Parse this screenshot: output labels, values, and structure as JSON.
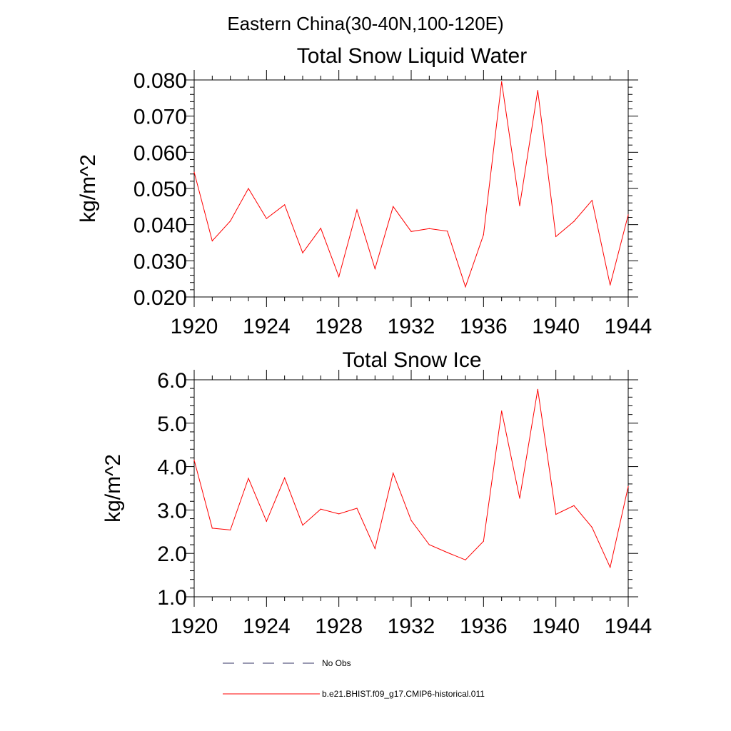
{
  "figure": {
    "title": "Eastern China(30-40N,100-120E)",
    "line_color": "#ff0000",
    "obs_color": "#333366"
  },
  "legend": {
    "items": [
      {
        "label": "No Obs",
        "style": "dashed",
        "color": "#333366"
      },
      {
        "label": "b.e21.BHIST.f09_g17.CMIP6-historical.011",
        "style": "solid",
        "color": "#ff0000"
      }
    ]
  },
  "chart_data": [
    {
      "type": "line",
      "title": "Total Snow Liquid Water",
      "xlabel": "",
      "ylabel": "kg/m^2",
      "xlim": [
        1920,
        1944
      ],
      "ylim": [
        0.02,
        0.08
      ],
      "x_ticks": [
        "1920",
        "1924",
        "1928",
        "1932",
        "1936",
        "1940",
        "1944"
      ],
      "y_ticks": [
        "0.020",
        "0.030",
        "0.040",
        "0.050",
        "0.060",
        "0.070",
        "0.080"
      ],
      "grid": false,
      "series": [
        {
          "name": "b.e21.BHIST.f09_g17.CMIP6-historical.011",
          "x": [
            1920,
            1921,
            1922,
            1923,
            1924,
            1925,
            1926,
            1927,
            1928,
            1929,
            1930,
            1931,
            1932,
            1933,
            1934,
            1935,
            1936,
            1937,
            1938,
            1939,
            1940,
            1941,
            1942,
            1943,
            1944
          ],
          "y": [
            0.0545,
            0.0355,
            0.041,
            0.05,
            0.0417,
            0.0455,
            0.0322,
            0.039,
            0.0256,
            0.0441,
            0.0278,
            0.045,
            0.0381,
            0.0389,
            0.0382,
            0.0228,
            0.0372,
            0.0795,
            0.0452,
            0.0771,
            0.0367,
            0.0409,
            0.0467,
            0.0233,
            0.0427
          ]
        }
      ]
    },
    {
      "type": "line",
      "title": "Total Snow Ice",
      "xlabel": "",
      "ylabel": "kg/m^2",
      "xlim": [
        1920,
        1944
      ],
      "ylim": [
        1.0,
        6.0
      ],
      "x_ticks": [
        "1920",
        "1924",
        "1928",
        "1932",
        "1936",
        "1940",
        "1944"
      ],
      "y_ticks": [
        "1.0",
        "2.0",
        "3.0",
        "4.0",
        "5.0",
        "6.0"
      ],
      "grid": false,
      "series": [
        {
          "name": "b.e21.BHIST.f09_g17.CMIP6-historical.011",
          "x": [
            1920,
            1921,
            1922,
            1923,
            1924,
            1925,
            1926,
            1927,
            1928,
            1929,
            1930,
            1931,
            1932,
            1933,
            1934,
            1935,
            1936,
            1937,
            1938,
            1939,
            1940,
            1941,
            1942,
            1943,
            1944
          ],
          "y": [
            4.15,
            2.58,
            2.54,
            3.73,
            2.74,
            3.74,
            2.65,
            3.02,
            2.91,
            3.04,
            2.11,
            3.85,
            2.76,
            2.2,
            2.02,
            1.85,
            2.28,
            5.28,
            3.27,
            5.78,
            2.9,
            3.1,
            2.6,
            1.68,
            3.54
          ]
        }
      ]
    }
  ]
}
